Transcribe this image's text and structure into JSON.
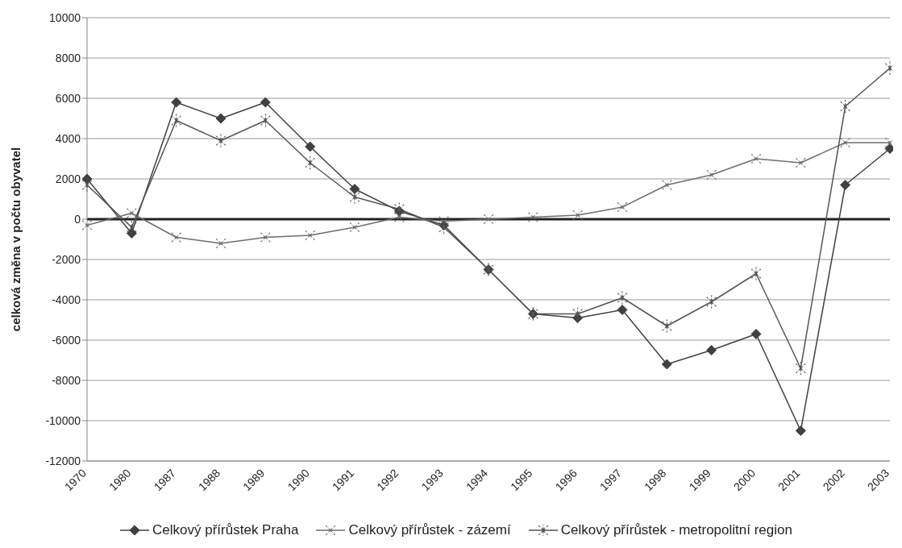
{
  "chart_data": {
    "type": "line",
    "ylabel": "celková změna v počtu obyvatel",
    "categories": [
      "1970",
      "1980",
      "1987",
      "1988",
      "1989",
      "1990",
      "1991",
      "1992",
      "1993",
      "1994",
      "1995",
      "1996",
      "1997",
      "1998",
      "1999",
      "2000",
      "2001",
      "2002",
      "2003"
    ],
    "series": [
      {
        "name": "Celkový přírůstek Praha",
        "color": "#404040",
        "marker": "diamond",
        "values": [
          2000,
          -700,
          5800,
          5000,
          5800,
          3600,
          1500,
          400,
          -300,
          -2500,
          -4700,
          -4900,
          -4500,
          -7200,
          -6500,
          -5700,
          -10500,
          1700,
          3500
        ]
      },
      {
        "name": "Celkový přírůstek - zázemí",
        "color": "#6e6e6e",
        "marker": "cross",
        "values": [
          -300,
          300,
          -900,
          -1200,
          -900,
          -800,
          -400,
          100,
          -100,
          0,
          100,
          200,
          600,
          1700,
          2200,
          3000,
          2800,
          3800,
          3800
        ]
      },
      {
        "name": "Celkový přírůstek - metropolitní region",
        "color": "#555555",
        "marker": "star",
        "values": [
          1700,
          -400,
          4900,
          3900,
          4900,
          2800,
          1100,
          500,
          -400,
          -2500,
          -4700,
          -4700,
          -3900,
          -5300,
          -4100,
          -2700,
          -7400,
          5600,
          7500
        ]
      }
    ],
    "ylim": [
      -12000,
      10000
    ],
    "yticks": [
      -12000,
      -10000,
      -8000,
      -6000,
      -4000,
      -2000,
      0,
      2000,
      4000,
      6000,
      8000,
      10000
    ],
    "grid": "y",
    "legend": "bottom",
    "line_style": "solid",
    "ref_lines": [
      {
        "axis": "y",
        "value": 0,
        "color": "#222222"
      }
    ]
  }
}
